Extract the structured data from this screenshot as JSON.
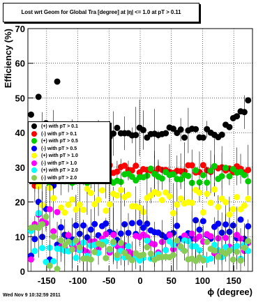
{
  "chart_data": {
    "type": "scatter",
    "title": "Lost wrt Geom for Global Tra [degree] at |η| <= 1.0 at pT > 0.11",
    "xlabel": "ϕ (degree)",
    "ylabel": "Efficiency (%)",
    "xlim": [
      -180,
      180
    ],
    "ylim": [
      0,
      70
    ],
    "x_ticks": [
      -150,
      -100,
      -50,
      0,
      50,
      100,
      150
    ],
    "y_ticks": [
      0,
      10,
      20,
      30,
      40,
      50,
      60,
      70
    ],
    "grid": true,
    "legend_position": "left-middle",
    "series": [
      {
        "name": "(+) with pT > 0.1",
        "color": "#000000",
        "base": 40,
        "spread": 1.5,
        "trend": "rising-right"
      },
      {
        "name": "(-) with pT > 0.1",
        "color": "#ff0000",
        "base": 29.5,
        "spread": 1.2
      },
      {
        "name": "(+) with pT > 0.5",
        "color": "#00cc00",
        "base": 28,
        "spread": 2.5
      },
      {
        "name": "(-) with pT > 0.5",
        "color": "#0000ff",
        "base": 12,
        "spread": 3
      },
      {
        "name": "(+) with pT > 1.0",
        "color": "#ffff00",
        "base": 20,
        "spread": 4
      },
      {
        "name": "(-) with pT > 1.0",
        "color": "#ff00ff",
        "base": 8,
        "spread": 3
      },
      {
        "name": "(+) with pT > 2.0",
        "color": "#00ffff",
        "base": 6,
        "spread": 3
      },
      {
        "name": "(-) with pT > 2.0",
        "color": "#88cc55",
        "base": 6,
        "spread": 3
      }
    ]
  },
  "footer": {
    "timestamp": "Wed Nov  9 10:32:59 2011"
  }
}
